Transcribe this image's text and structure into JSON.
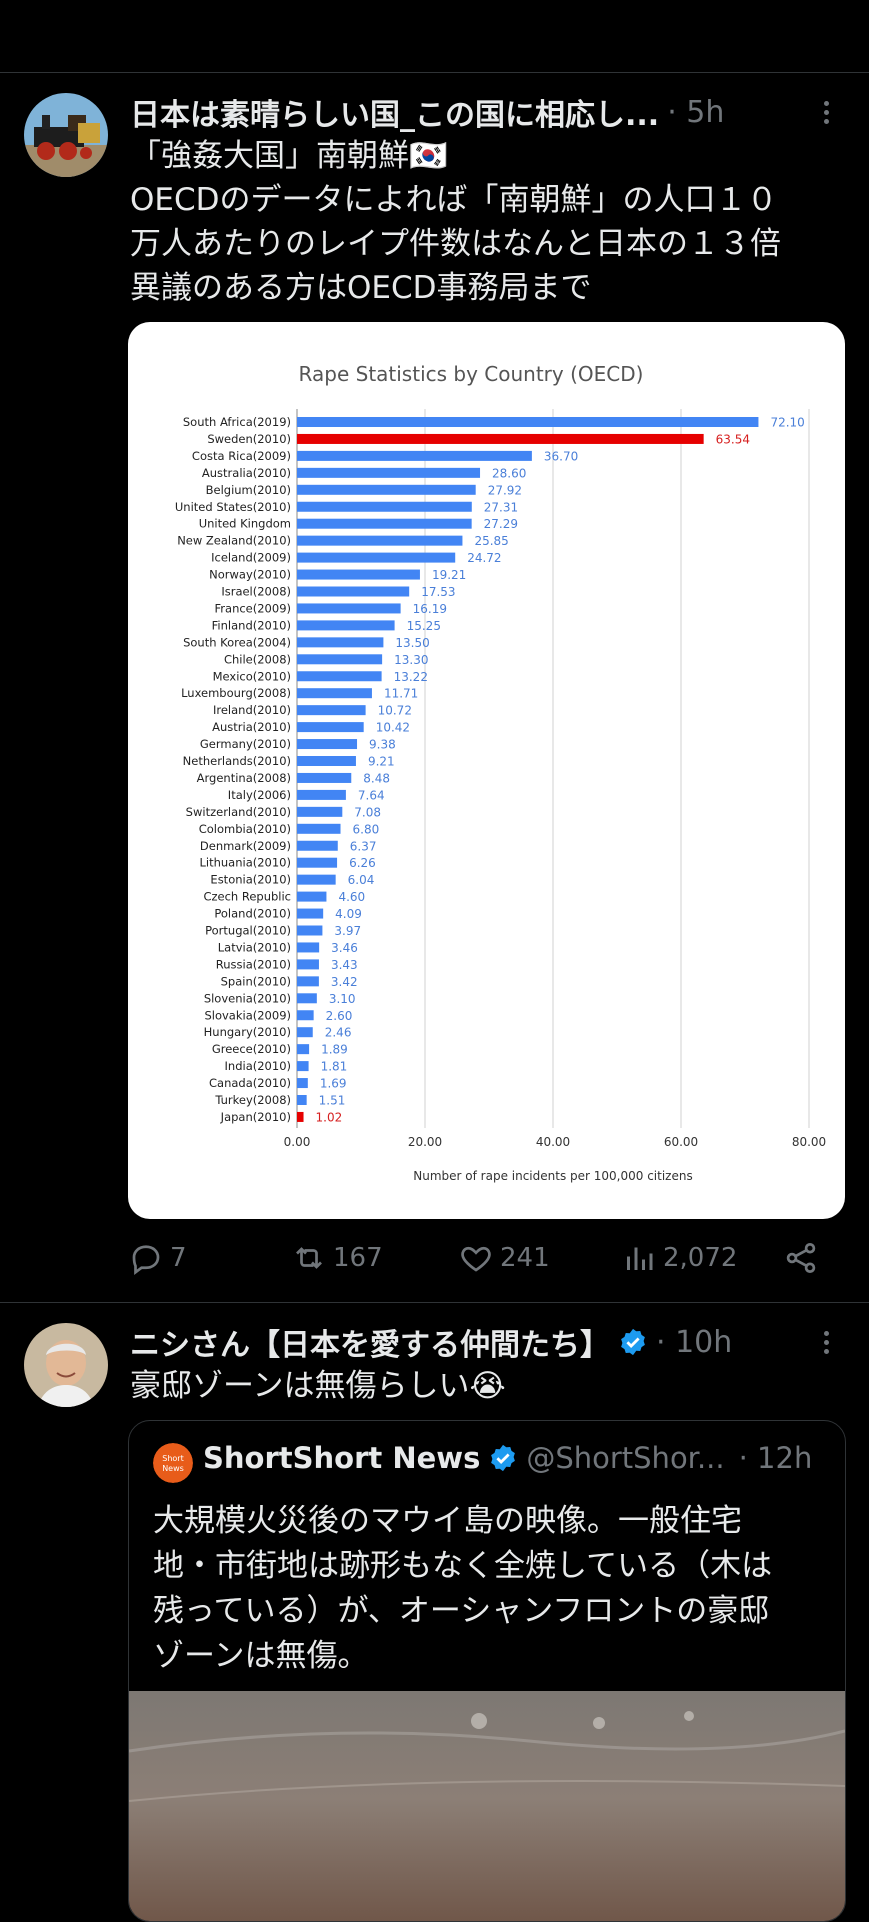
{
  "tweet1": {
    "display_name": "日本は素晴らしい国_この国に相応し...",
    "time": "· 5h",
    "lines": [
      "「強姦大国」南朝鮮🇰🇷",
      "OECDのデータによれば「南朝鮮」の人口１０",
      "万人あたりのレイプ件数はなんと日本の１３倍",
      "異議のある方はOECD事務局まで"
    ],
    "stats": {
      "replies": "7",
      "retweets": "167",
      "likes": "241",
      "views": "2,072"
    }
  },
  "chart_data": {
    "type": "bar",
    "orientation": "horizontal",
    "title": "Rape Statistics by Country (OECD)",
    "xlabel": "Number of rape incidents per 100,000 citizens",
    "ylabel": "",
    "xlim": [
      0,
      80
    ],
    "xticks": [
      "0.00",
      "20.00",
      "40.00",
      "60.00",
      "80.00"
    ],
    "grid": "vertical",
    "colors": {
      "default": "#4285f4",
      "highlight": "#e60000",
      "label_default": "#4a7fd8",
      "label_highlight": "#d61f1f"
    },
    "categories": [
      "South Africa(2019)",
      "Sweden(2010)",
      "Costa Rica(2009)",
      "Australia(2010)",
      "Belgium(2010)",
      "United States(2010)",
      "United Kingdom",
      "New Zealand(2010)",
      "Iceland(2009)",
      "Norway(2010)",
      "Israel(2008)",
      "France(2009)",
      "Finland(2010)",
      "South Korea(2004)",
      "Chile(2008)",
      "Mexico(2010)",
      "Luxembourg(2008)",
      "Ireland(2010)",
      "Austria(2010)",
      "Germany(2010)",
      "Netherlands(2010)",
      "Argentina(2008)",
      "Italy(2006)",
      "Switzerland(2010)",
      "Colombia(2010)",
      "Denmark(2009)",
      "Lithuania(2010)",
      "Estonia(2010)",
      "Czech Republic",
      "Poland(2010)",
      "Portugal(2010)",
      "Latvia(2010)",
      "Russia(2010)",
      "Spain(2010)",
      "Slovenia(2010)",
      "Slovakia(2009)",
      "Hungary(2010)",
      "Greece(2010)",
      "India(2010)",
      "Canada(2010)",
      "Turkey(2008)",
      "Japan(2010)"
    ],
    "values": [
      72.1,
      63.54,
      36.7,
      28.6,
      27.92,
      27.31,
      27.29,
      25.85,
      24.72,
      19.21,
      17.53,
      16.19,
      15.25,
      13.5,
      13.3,
      13.22,
      11.71,
      10.72,
      10.42,
      9.38,
      9.21,
      8.48,
      7.64,
      7.08,
      6.8,
      6.37,
      6.26,
      6.04,
      4.6,
      4.09,
      3.97,
      3.46,
      3.43,
      3.42,
      3.1,
      2.6,
      2.46,
      1.89,
      1.81,
      1.69,
      1.51,
      1.02
    ],
    "labels": [
      "72.10",
      "63.54",
      "36.70",
      "28.60",
      "27.92",
      "27.31",
      "27.29",
      "25.85",
      "24.72",
      "19.21",
      "17.53",
      "16.19",
      "15.25",
      "13.50",
      "13.30",
      "13.22",
      "11.71",
      "10.72",
      "10.42",
      "9.38",
      "9.21",
      "8.48",
      "7.64",
      "7.08",
      "6.80",
      "6.37",
      "6.26",
      "6.04",
      "4.60",
      "4.09",
      "3.97",
      "3.46",
      "3.43",
      "3.42",
      "3.10",
      "2.60",
      "2.46",
      "1.89",
      "1.81",
      "1.69",
      "1.51",
      "1.02"
    ],
    "highlighted": [
      "Sweden(2010)",
      "Japan(2010)"
    ]
  },
  "tweet2": {
    "display_name": "ニシさん【日本を愛する仲間たち】",
    "time": "· 10h",
    "text": "豪邸ゾーンは無傷らしい😭",
    "quote": {
      "name": "ShortShort News",
      "handle": "@ShortShor...",
      "time": "· 12h",
      "lines": [
        "大規模火災後のマウイ島の映像。一般住宅",
        "地・市街地は跡形もなく全焼している（木は",
        "残っている）が、オーシャンフロントの豪邸",
        "ゾーンは無傷。"
      ]
    }
  },
  "icons": {
    "reply": "reply-icon",
    "retweet": "retweet-icon",
    "like": "heart-icon",
    "views": "views-icon",
    "share": "share-icon",
    "more": "more-icon",
    "verified": "verified-badge-icon"
  },
  "accent": {
    "verified_blue": "#1d9bf0",
    "muted_text": "#71767b"
  }
}
